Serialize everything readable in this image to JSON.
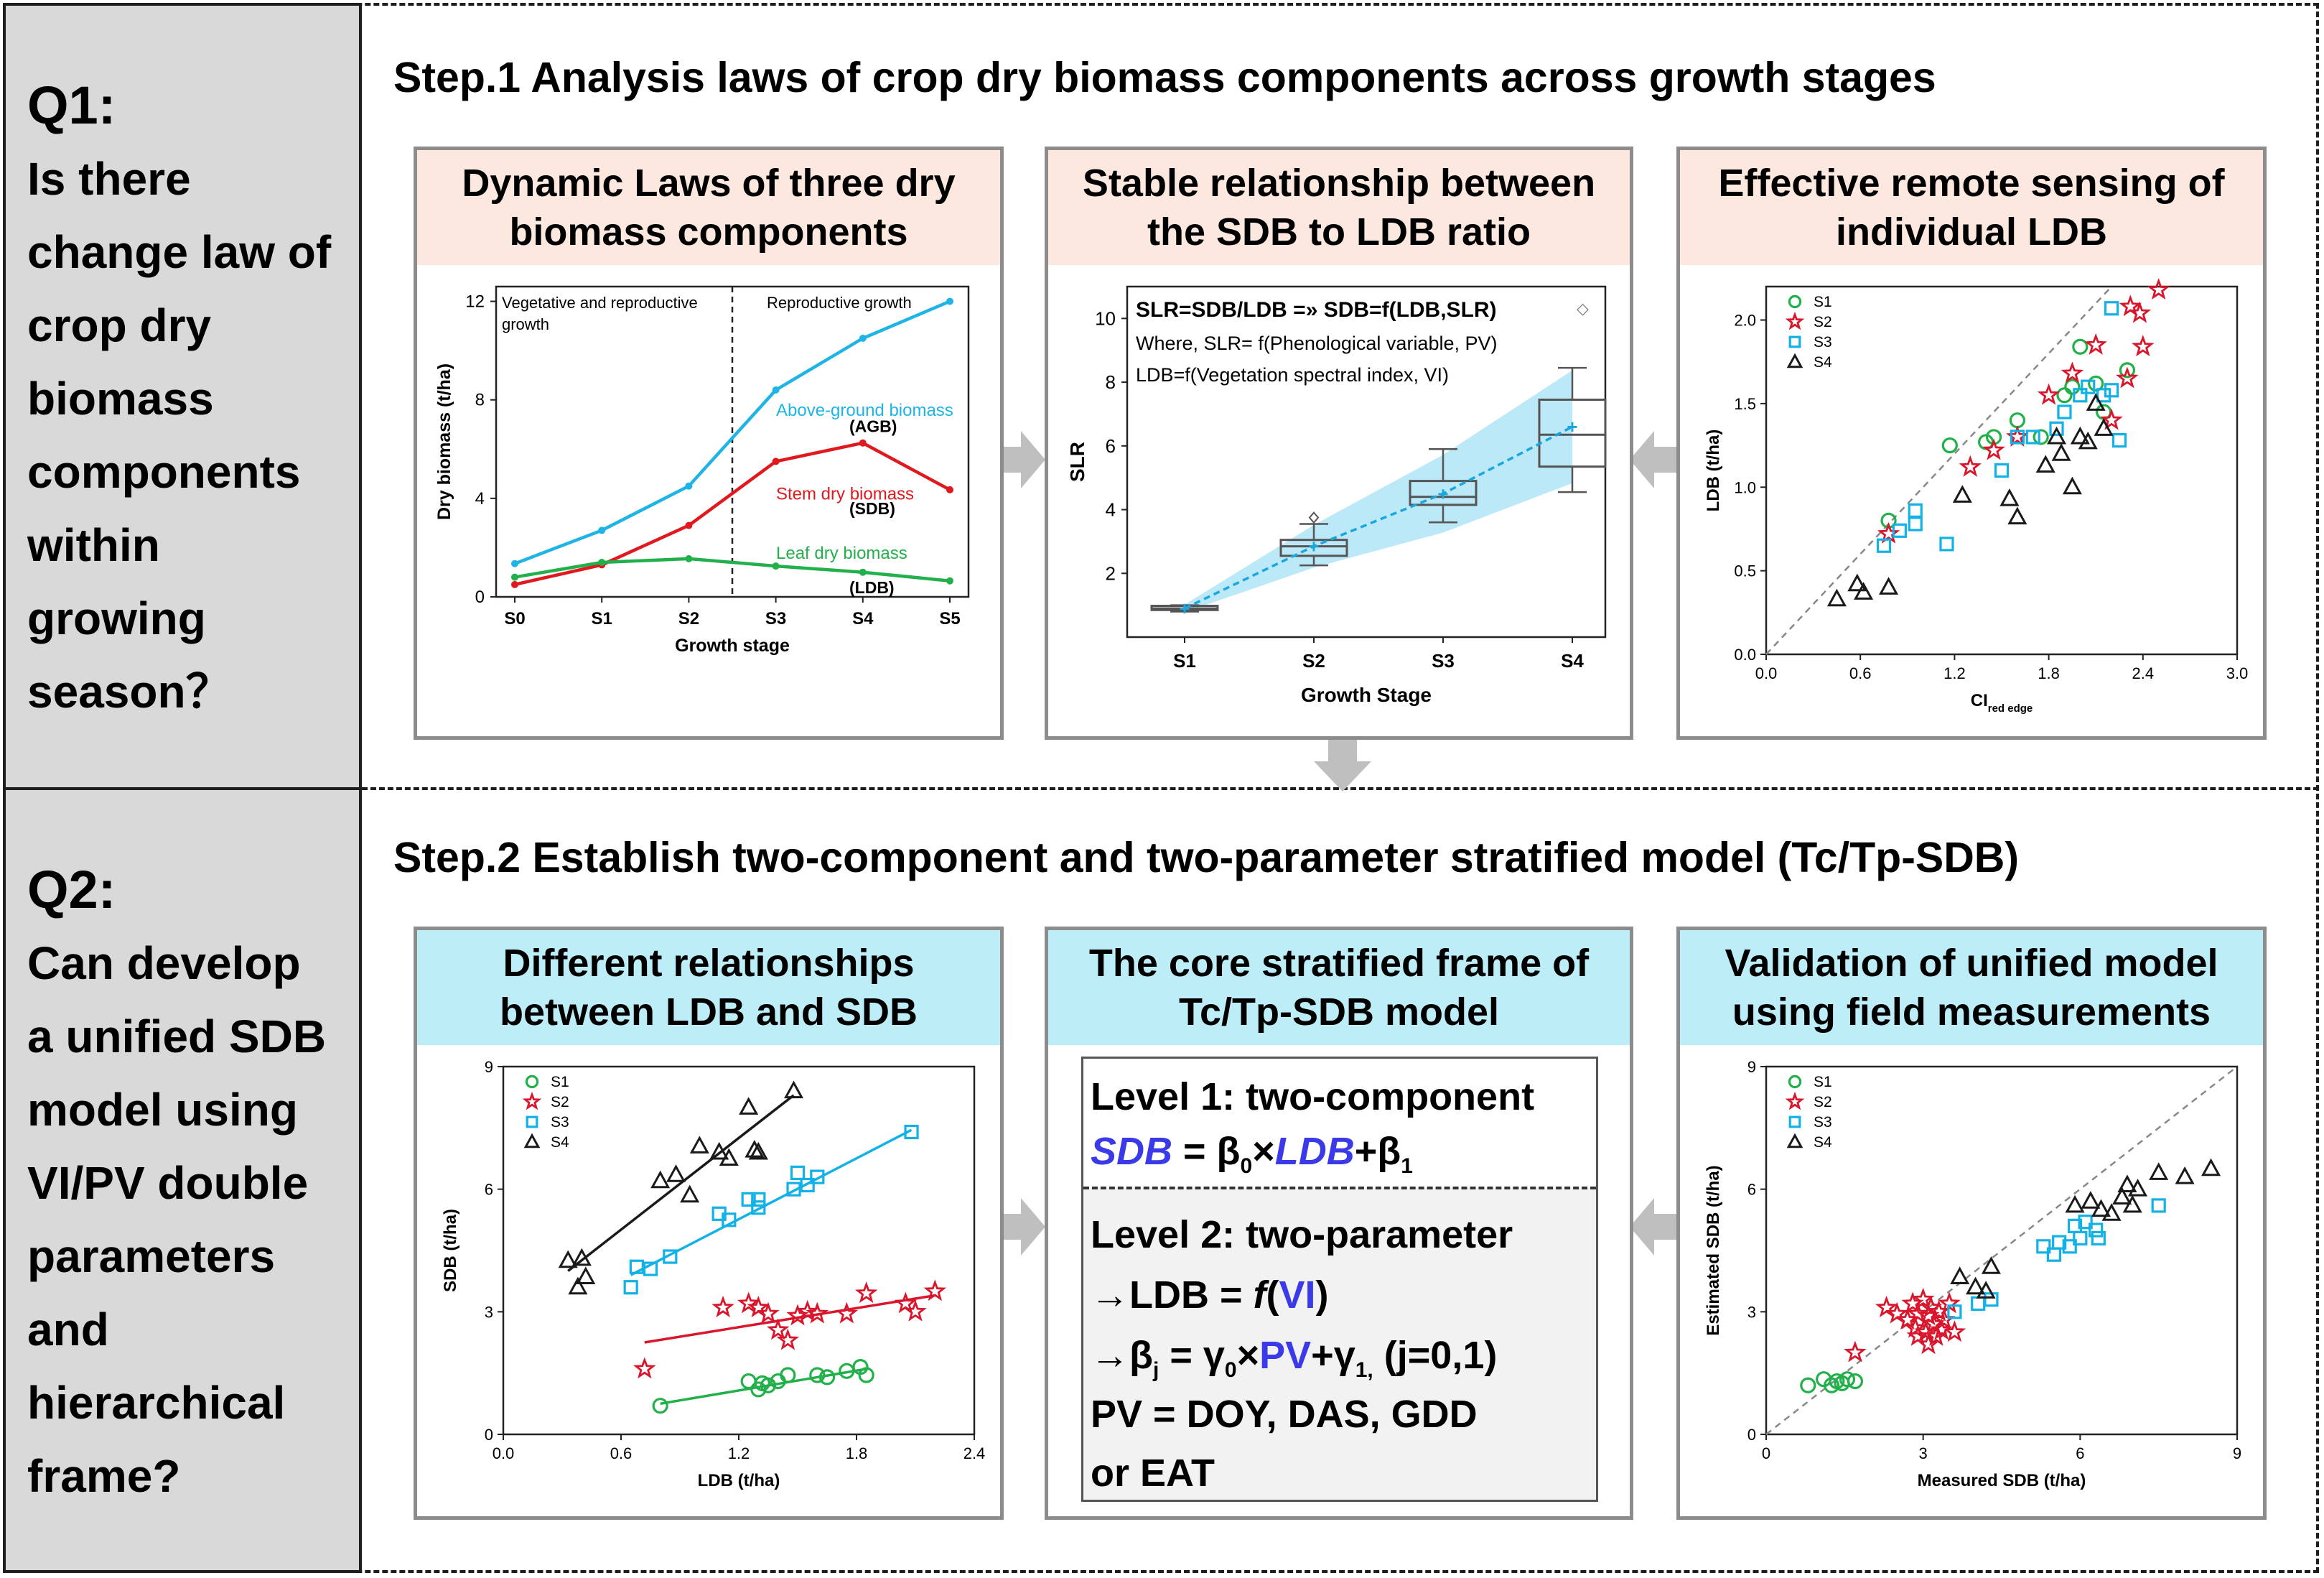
{
  "q1": {
    "label": "Q1:",
    "lines": [
      "Is there",
      "change law of",
      "crop dry",
      "biomass",
      "components",
      "within",
      "growing",
      "season？"
    ]
  },
  "q2": {
    "label": "Q2:",
    "lines": [
      "Can develop",
      "a unified SDB",
      "model using",
      "VI/PV double",
      "parameters",
      "and",
      "hierarchical",
      "frame?"
    ]
  },
  "step1": {
    "title": "Step.1 Analysis laws of crop dry biomass components across growth stages"
  },
  "step2": {
    "title": "Step.2 Establish two-component and two-parameter stratified model (Tc/Tp-SDB)"
  },
  "panel1": {
    "title_lines": [
      "Dynamic Laws of three dry",
      "biomass components"
    ],
    "region_left": "Vegetative and reproductive",
    "region_left2": "growth",
    "region_right": "Reproductive growth",
    "labels": {
      "agb": "Above-ground biomass",
      "agb_abbr": "(AGB)",
      "sdb": "Stem dry biomass",
      "sdb_abbr": "(SDB)",
      "ldb": "Leaf dry biomass",
      "ldb_abbr": "(LDB)"
    }
  },
  "panel2": {
    "title_lines": [
      "Stable relationship between",
      "the SDB to LDB ratio"
    ],
    "eq_line1": "SLR=SDB/LDB =» SDB=f(LDB,SLR)",
    "eq_line2": "Where, SLR= f(Phenological variable, PV)",
    "eq_line3": "LDB=f(Vegetation spectral index, VI)",
    "diamond": "◇"
  },
  "panel3": {
    "title_lines": [
      "Effective remote sensing of",
      "individual LDB"
    ]
  },
  "panel4": {
    "title_lines": [
      "Different relationships",
      "between LDB and SDB"
    ]
  },
  "panel5": {
    "title_lines": [
      "The core stratified frame of",
      "Tc/Tp-SDB model"
    ],
    "level1": "Level 1: two-component",
    "eq1_sdb": "SDB",
    "eq1_mid": " =  β",
    "eq1_sub0": "0",
    "eq1_times": "×",
    "eq1_ldb": "LDB",
    "eq1_plus": "+β",
    "eq1_sub1": "1",
    "level2": "Level 2: two-parameter",
    "l2_a_pre": "→LDB = ",
    "l2_a_f": "f",
    "l2_a_open": "(",
    "l2_a_vi": "VI",
    "l2_a_close": ")",
    "l2_b_pre": "→β",
    "l2_b_subj": "j",
    "l2_b_mid": " = γ",
    "l2_b_sub0": "0",
    "l2_b_times": "×",
    "l2_b_pv": "PV",
    "l2_b_plus": "+γ",
    "l2_b_sub1": "1,",
    "l2_b_tail": " (j=0,1)",
    "l2_c": "PV = DOY, DAS, GDD",
    "l2_d": "or EAT"
  },
  "panel6": {
    "title_lines": [
      "Validation of unified model",
      "using field measurements"
    ]
  },
  "colors": {
    "s1": "#22b04b",
    "s2": "#d9162c",
    "s3": "#12b1e6",
    "s4": "#1a1a1a",
    "blue": "#3a3ae8",
    "agb": "#1eb4e6",
    "sdb": "#e0191e",
    "ldb": "#22b04b"
  },
  "chart_data": [
    {
      "type": "line",
      "title": "Dynamic Laws of three dry biomass components",
      "xlabel": "Growth stage",
      "ylabel": "Dry biomass (t/ha)",
      "categories": [
        "S0",
        "S1",
        "S2",
        "S3",
        "S4",
        "S5"
      ],
      "yticks": [
        "0",
        "4",
        "8",
        "12"
      ],
      "ylim": [
        0,
        12.6
      ],
      "divider_at": 2.5,
      "series": [
        {
          "name": "Above-ground biomass",
          "key": "agb",
          "values": [
            1.35,
            2.7,
            4.5,
            8.4,
            10.5,
            12.0
          ]
        },
        {
          "name": "Stem dry biomass",
          "key": "sdb",
          "values": [
            0.5,
            1.3,
            2.9,
            5.5,
            6.25,
            4.35
          ]
        },
        {
          "name": "Leaf dry biomass",
          "key": "ldb",
          "values": [
            0.8,
            1.4,
            1.55,
            1.25,
            1.0,
            0.65
          ]
        }
      ]
    },
    {
      "type": "box",
      "title": "Stable relationship between the SDB to LDB ratio",
      "xlabel": "Growth Stage",
      "ylabel": "SLR",
      "categories": [
        "S1",
        "S2",
        "S3",
        "S4"
      ],
      "yticks": [
        "2",
        "4",
        "6",
        "8",
        "10"
      ],
      "ylim": [
        0,
        11
      ],
      "boxes": [
        {
          "min": 0.8,
          "q1": 0.85,
          "median": 0.9,
          "q3": 0.98,
          "max": 1.0,
          "mean": 0.9
        },
        {
          "min": 2.25,
          "q1": 2.55,
          "median": 2.85,
          "q3": 3.05,
          "max": 3.55,
          "mean": 2.85,
          "outlier": 3.75
        },
        {
          "min": 3.6,
          "q1": 4.15,
          "median": 4.4,
          "q3": 4.9,
          "max": 5.9,
          "mean": 4.5
        },
        {
          "min": 4.55,
          "q1": 5.35,
          "median": 6.35,
          "q3": 7.45,
          "max": 8.45,
          "mean": 6.6
        }
      ]
    },
    {
      "type": "scatter",
      "title": "Effective remote sensing of individual LDB",
      "xlabel": "CI",
      "xlabel_sub": "red edge",
      "ylabel": "LDB (t/ha)",
      "xlim": [
        0,
        3.0
      ],
      "ylim": [
        0,
        2.2
      ],
      "xticks": [
        "0.0",
        "0.6",
        "1.2",
        "1.8",
        "2.4",
        "3.0"
      ],
      "yticks": [
        "0.0",
        "0.5",
        "1.0",
        "1.5",
        "2.0"
      ],
      "legend": [
        "S1",
        "S2",
        "S3",
        "S4"
      ],
      "series": [
        {
          "name": "S1",
          "key": "s1",
          "marker": "circle",
          "points": [
            [
              0.78,
              0.8
            ],
            [
              1.17,
              1.25
            ],
            [
              1.4,
              1.27
            ],
            [
              1.45,
              1.3
            ],
            [
              1.6,
              1.4
            ],
            [
              1.75,
              1.3
            ],
            [
              1.9,
              1.55
            ],
            [
              1.95,
              1.6
            ],
            [
              2.0,
              1.84
            ],
            [
              2.1,
              1.62
            ],
            [
              2.15,
              1.45
            ],
            [
              2.3,
              1.7
            ]
          ]
        },
        {
          "name": "S2",
          "key": "s2",
          "marker": "star",
          "points": [
            [
              0.78,
              0.72
            ],
            [
              1.3,
              1.12
            ],
            [
              1.45,
              1.22
            ],
            [
              1.6,
              1.3
            ],
            [
              1.8,
              1.55
            ],
            [
              1.95,
              1.68
            ],
            [
              2.1,
              1.85
            ],
            [
              2.2,
              1.4
            ],
            [
              2.3,
              1.65
            ],
            [
              2.32,
              2.08
            ],
            [
              2.38,
              2.04
            ],
            [
              2.4,
              1.84
            ],
            [
              2.5,
              2.18
            ]
          ]
        },
        {
          "name": "S3",
          "key": "s3",
          "marker": "square",
          "points": [
            [
              0.75,
              0.65
            ],
            [
              0.85,
              0.74
            ],
            [
              0.95,
              0.78
            ],
            [
              0.95,
              0.86
            ],
            [
              1.15,
              0.66
            ],
            [
              1.5,
              1.1
            ],
            [
              1.6,
              1.3
            ],
            [
              1.7,
              1.3
            ],
            [
              1.85,
              1.35
            ],
            [
              1.9,
              1.45
            ],
            [
              2.0,
              1.55
            ],
            [
              2.05,
              1.6
            ],
            [
              2.15,
              1.55
            ],
            [
              2.2,
              1.58
            ],
            [
              2.25,
              1.28
            ],
            [
              2.2,
              2.07
            ]
          ]
        },
        {
          "name": "S4",
          "key": "s4",
          "marker": "triangle",
          "points": [
            [
              0.45,
              0.33
            ],
            [
              0.58,
              0.42
            ],
            [
              0.62,
              0.37
            ],
            [
              0.78,
              0.4
            ],
            [
              1.25,
              0.95
            ],
            [
              1.55,
              0.93
            ],
            [
              1.6,
              0.82
            ],
            [
              1.78,
              1.13
            ],
            [
              1.85,
              1.3
            ],
            [
              1.88,
              1.2
            ],
            [
              1.95,
              1.0
            ],
            [
              2.0,
              1.3
            ],
            [
              2.05,
              1.27
            ],
            [
              2.1,
              1.5
            ],
            [
              2.15,
              1.35
            ]
          ]
        }
      ],
      "reference_line": "1:1"
    },
    {
      "type": "scatter",
      "title": "Different relationships between LDB and SDB",
      "xlabel": "LDB (t/ha)",
      "ylabel": "SDB (t/ha)",
      "xlim": [
        0,
        2.4
      ],
      "ylim": [
        0,
        9
      ],
      "xticks": [
        "0.0",
        "0.6",
        "1.2",
        "1.8",
        "2.4"
      ],
      "yticks": [
        "0",
        "3",
        "6",
        "9"
      ],
      "legend": [
        "S1",
        "S2",
        "S3",
        "S4"
      ],
      "series": [
        {
          "name": "S1",
          "key": "s1",
          "marker": "circle",
          "points": [
            [
              0.8,
              0.7
            ],
            [
              1.25,
              1.3
            ],
            [
              1.3,
              1.1
            ],
            [
              1.32,
              1.25
            ],
            [
              1.35,
              1.2
            ],
            [
              1.4,
              1.3
            ],
            [
              1.45,
              1.45
            ],
            [
              1.6,
              1.45
            ],
            [
              1.65,
              1.4
            ],
            [
              1.75,
              1.55
            ],
            [
              1.82,
              1.65
            ],
            [
              1.85,
              1.45
            ]
          ],
          "fit": [
            [
              0.8,
              0.75
            ],
            [
              1.85,
              1.6
            ]
          ]
        },
        {
          "name": "S2",
          "key": "s2",
          "marker": "star",
          "points": [
            [
              0.72,
              1.6
            ],
            [
              1.12,
              3.1
            ],
            [
              1.25,
              3.2
            ],
            [
              1.3,
              3.1
            ],
            [
              1.35,
              2.95
            ],
            [
              1.4,
              2.55
            ],
            [
              1.45,
              2.3
            ],
            [
              1.5,
              2.9
            ],
            [
              1.55,
              3.0
            ],
            [
              1.6,
              2.95
            ],
            [
              1.75,
              2.95
            ],
            [
              1.85,
              3.45
            ],
            [
              2.05,
              3.2
            ],
            [
              2.1,
              3.0
            ],
            [
              2.2,
              3.5
            ]
          ],
          "fit": [
            [
              0.72,
              2.25
            ],
            [
              2.2,
              3.4
            ]
          ]
        },
        {
          "name": "S3",
          "key": "s3",
          "marker": "square",
          "points": [
            [
              0.65,
              3.6
            ],
            [
              0.68,
              4.1
            ],
            [
              0.75,
              4.05
            ],
            [
              0.85,
              4.35
            ],
            [
              1.1,
              5.4
            ],
            [
              1.15,
              5.25
            ],
            [
              1.25,
              5.75
            ],
            [
              1.3,
              5.55
            ],
            [
              1.3,
              5.75
            ],
            [
              1.48,
              6.0
            ],
            [
              1.5,
              6.4
            ],
            [
              1.55,
              6.1
            ],
            [
              1.6,
              6.3
            ],
            [
              2.08,
              7.4
            ]
          ],
          "fit": [
            [
              0.65,
              3.9
            ],
            [
              2.08,
              7.45
            ]
          ]
        },
        {
          "name": "S4",
          "key": "s4",
          "marker": "triangle",
          "points": [
            [
              0.33,
              4.25
            ],
            [
              0.38,
              3.6
            ],
            [
              0.4,
              4.3
            ],
            [
              0.42,
              3.85
            ],
            [
              0.8,
              6.2
            ],
            [
              0.88,
              6.35
            ],
            [
              0.95,
              5.85
            ],
            [
              1.0,
              7.05
            ],
            [
              1.1,
              6.9
            ],
            [
              1.15,
              6.75
            ],
            [
              1.25,
              8.0
            ],
            [
              1.28,
              6.95
            ],
            [
              1.3,
              6.9
            ],
            [
              1.48,
              8.4
            ]
          ],
          "fit": [
            [
              0.33,
              4.0
            ],
            [
              1.48,
              8.3
            ]
          ]
        }
      ]
    },
    {
      "type": "scatter",
      "title": "Validation of unified model using field measurements",
      "xlabel": "Measured SDB (t/ha)",
      "ylabel": "Estimated SDB (t/ha)",
      "xlim": [
        0,
        9
      ],
      "ylim": [
        0,
        9
      ],
      "xticks": [
        "0",
        "3",
        "6",
        "9"
      ],
      "yticks": [
        "0",
        "3",
        "6",
        "9"
      ],
      "legend": [
        "S1",
        "S2",
        "S3",
        "S4"
      ],
      "series": [
        {
          "name": "S1",
          "key": "s1",
          "marker": "circle",
          "points": [
            [
              0.8,
              1.2
            ],
            [
              1.1,
              1.35
            ],
            [
              1.25,
              1.2
            ],
            [
              1.35,
              1.3
            ],
            [
              1.45,
              1.25
            ],
            [
              1.55,
              1.35
            ],
            [
              1.7,
              1.3
            ]
          ]
        },
        {
          "name": "S2",
          "key": "s2",
          "marker": "star",
          "points": [
            [
              1.7,
              2.0
            ],
            [
              2.3,
              3.1
            ],
            [
              2.5,
              2.95
            ],
            [
              2.7,
              2.8
            ],
            [
              2.8,
              3.2
            ],
            [
              2.85,
              2.6
            ],
            [
              2.9,
              2.95
            ],
            [
              3.0,
              3.3
            ],
            [
              3.05,
              2.5
            ],
            [
              3.1,
              2.9
            ],
            [
              3.15,
              3.1
            ],
            [
              3.2,
              2.7
            ],
            [
              3.25,
              2.4
            ],
            [
              3.3,
              3.0
            ],
            [
              3.35,
              2.55
            ],
            [
              3.4,
              2.8
            ],
            [
              3.5,
              3.2
            ],
            [
              3.6,
              2.5
            ],
            [
              2.9,
              2.4
            ],
            [
              3.1,
              2.2
            ]
          ]
        },
        {
          "name": "S3",
          "key": "s3",
          "marker": "square",
          "points": [
            [
              3.6,
              3.0
            ],
            [
              4.05,
              3.2
            ],
            [
              4.3,
              3.3
            ],
            [
              5.3,
              4.6
            ],
            [
              5.5,
              4.4
            ],
            [
              5.6,
              4.7
            ],
            [
              5.8,
              4.6
            ],
            [
              5.9,
              5.1
            ],
            [
              6.0,
              4.8
            ],
            [
              6.1,
              5.2
            ],
            [
              6.3,
              5.0
            ],
            [
              6.35,
              4.8
            ],
            [
              7.5,
              5.6
            ]
          ]
        },
        {
          "name": "S4",
          "key": "s4",
          "marker": "triangle",
          "points": [
            [
              3.7,
              3.85
            ],
            [
              4.0,
              3.6
            ],
            [
              4.2,
              3.5
            ],
            [
              4.3,
              4.1
            ],
            [
              5.9,
              5.6
            ],
            [
              6.2,
              5.7
            ],
            [
              6.4,
              5.5
            ],
            [
              6.6,
              5.4
            ],
            [
              6.8,
              5.8
            ],
            [
              6.9,
              6.1
            ],
            [
              7.0,
              5.6
            ],
            [
              7.1,
              6.0
            ],
            [
              7.5,
              6.4
            ],
            [
              8.0,
              6.3
            ],
            [
              8.5,
              6.5
            ]
          ]
        }
      ],
      "reference_line": "1:1"
    }
  ]
}
